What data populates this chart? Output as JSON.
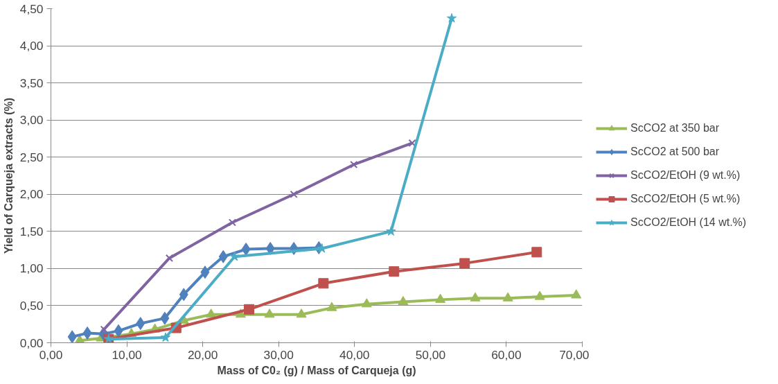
{
  "chart_data": {
    "type": "line",
    "xlabel": "Mass of C0₂ (g) / Mass of Carqueja (g)",
    "ylabel": "Yield of Carqueja extracts (%)",
    "xlim": [
      0,
      70
    ],
    "ylim": [
      0,
      4.5
    ],
    "xticks": [
      {
        "value": 0,
        "label": "0,00"
      },
      {
        "value": 10,
        "label": "10,00"
      },
      {
        "value": 20,
        "label": "20,00"
      },
      {
        "value": 30,
        "label": "30,00"
      },
      {
        "value": 40,
        "label": "40,00"
      },
      {
        "value": 50,
        "label": "50,00"
      },
      {
        "value": 60,
        "label": "60,00"
      },
      {
        "value": 70,
        "label": "70,00"
      }
    ],
    "yticks": [
      {
        "value": 0,
        "label": "0,00"
      },
      {
        "value": 0.5,
        "label": "0,50"
      },
      {
        "value": 1,
        "label": "1,00"
      },
      {
        "value": 1.5,
        "label": "1,50"
      },
      {
        "value": 2,
        "label": "2,00"
      },
      {
        "value": 2.5,
        "label": "2,50"
      },
      {
        "value": 3,
        "label": "3,00"
      },
      {
        "value": 3.5,
        "label": "3,50"
      },
      {
        "value": 4,
        "label": "4,00"
      },
      {
        "value": 4.5,
        "label": "4,50"
      }
    ],
    "grid": "y",
    "legend": "right",
    "line_style": "solid",
    "series": [
      {
        "name": "ScCO2 at 350 bar",
        "color": "#9bbb59",
        "marker": "triangle",
        "x": [
          3.8,
          6.6,
          10.6,
          13.7,
          17.5,
          21.1,
          25.0,
          28.8,
          33.0,
          37.0,
          41.6,
          46.4,
          51.3,
          55.9,
          60.2,
          64.4,
          69.2
        ],
        "values": [
          0.03,
          0.06,
          0.12,
          0.18,
          0.3,
          0.38,
          0.38,
          0.38,
          0.38,
          0.47,
          0.52,
          0.55,
          0.58,
          0.6,
          0.6,
          0.62,
          0.64
        ]
      },
      {
        "name": "ScCO2 at 500 bar",
        "color": "#4f81bd",
        "marker": "diamond",
        "x": [
          2.8,
          4.8,
          6.9,
          8.9,
          11.8,
          15.0,
          17.5,
          20.3,
          22.7,
          25.7,
          28.9,
          32.0,
          35.3
        ],
        "values": [
          0.08,
          0.13,
          0.12,
          0.16,
          0.26,
          0.33,
          0.65,
          0.95,
          1.16,
          1.26,
          1.27,
          1.27,
          1.28
        ]
      },
      {
        "name": "ScCO2/EtOH (9 wt.%)",
        "color": "#8064a2",
        "marker": "cross",
        "x": [
          7.0,
          15.6,
          23.9,
          32.0,
          39.9,
          47.6
        ],
        "values": [
          0.18,
          1.14,
          1.62,
          2.0,
          2.4,
          2.69
        ]
      },
      {
        "name": "ScCO2/EtOH (5 wt.%)",
        "color": "#c0504d",
        "marker": "square",
        "x": [
          7.6,
          16.5,
          26.1,
          35.9,
          45.2,
          54.5,
          64.0
        ],
        "values": [
          0.05,
          0.2,
          0.45,
          0.8,
          0.96,
          1.07,
          1.22
        ]
      },
      {
        "name": "ScCO2/EtOH (14 wt.%)",
        "color": "#4bacc6",
        "marker": "star",
        "x": [
          7.6,
          15.1,
          24.2,
          35.7,
          44.8,
          52.8
        ],
        "values": [
          0.05,
          0.07,
          1.16,
          1.27,
          1.5,
          4.37
        ]
      }
    ]
  }
}
